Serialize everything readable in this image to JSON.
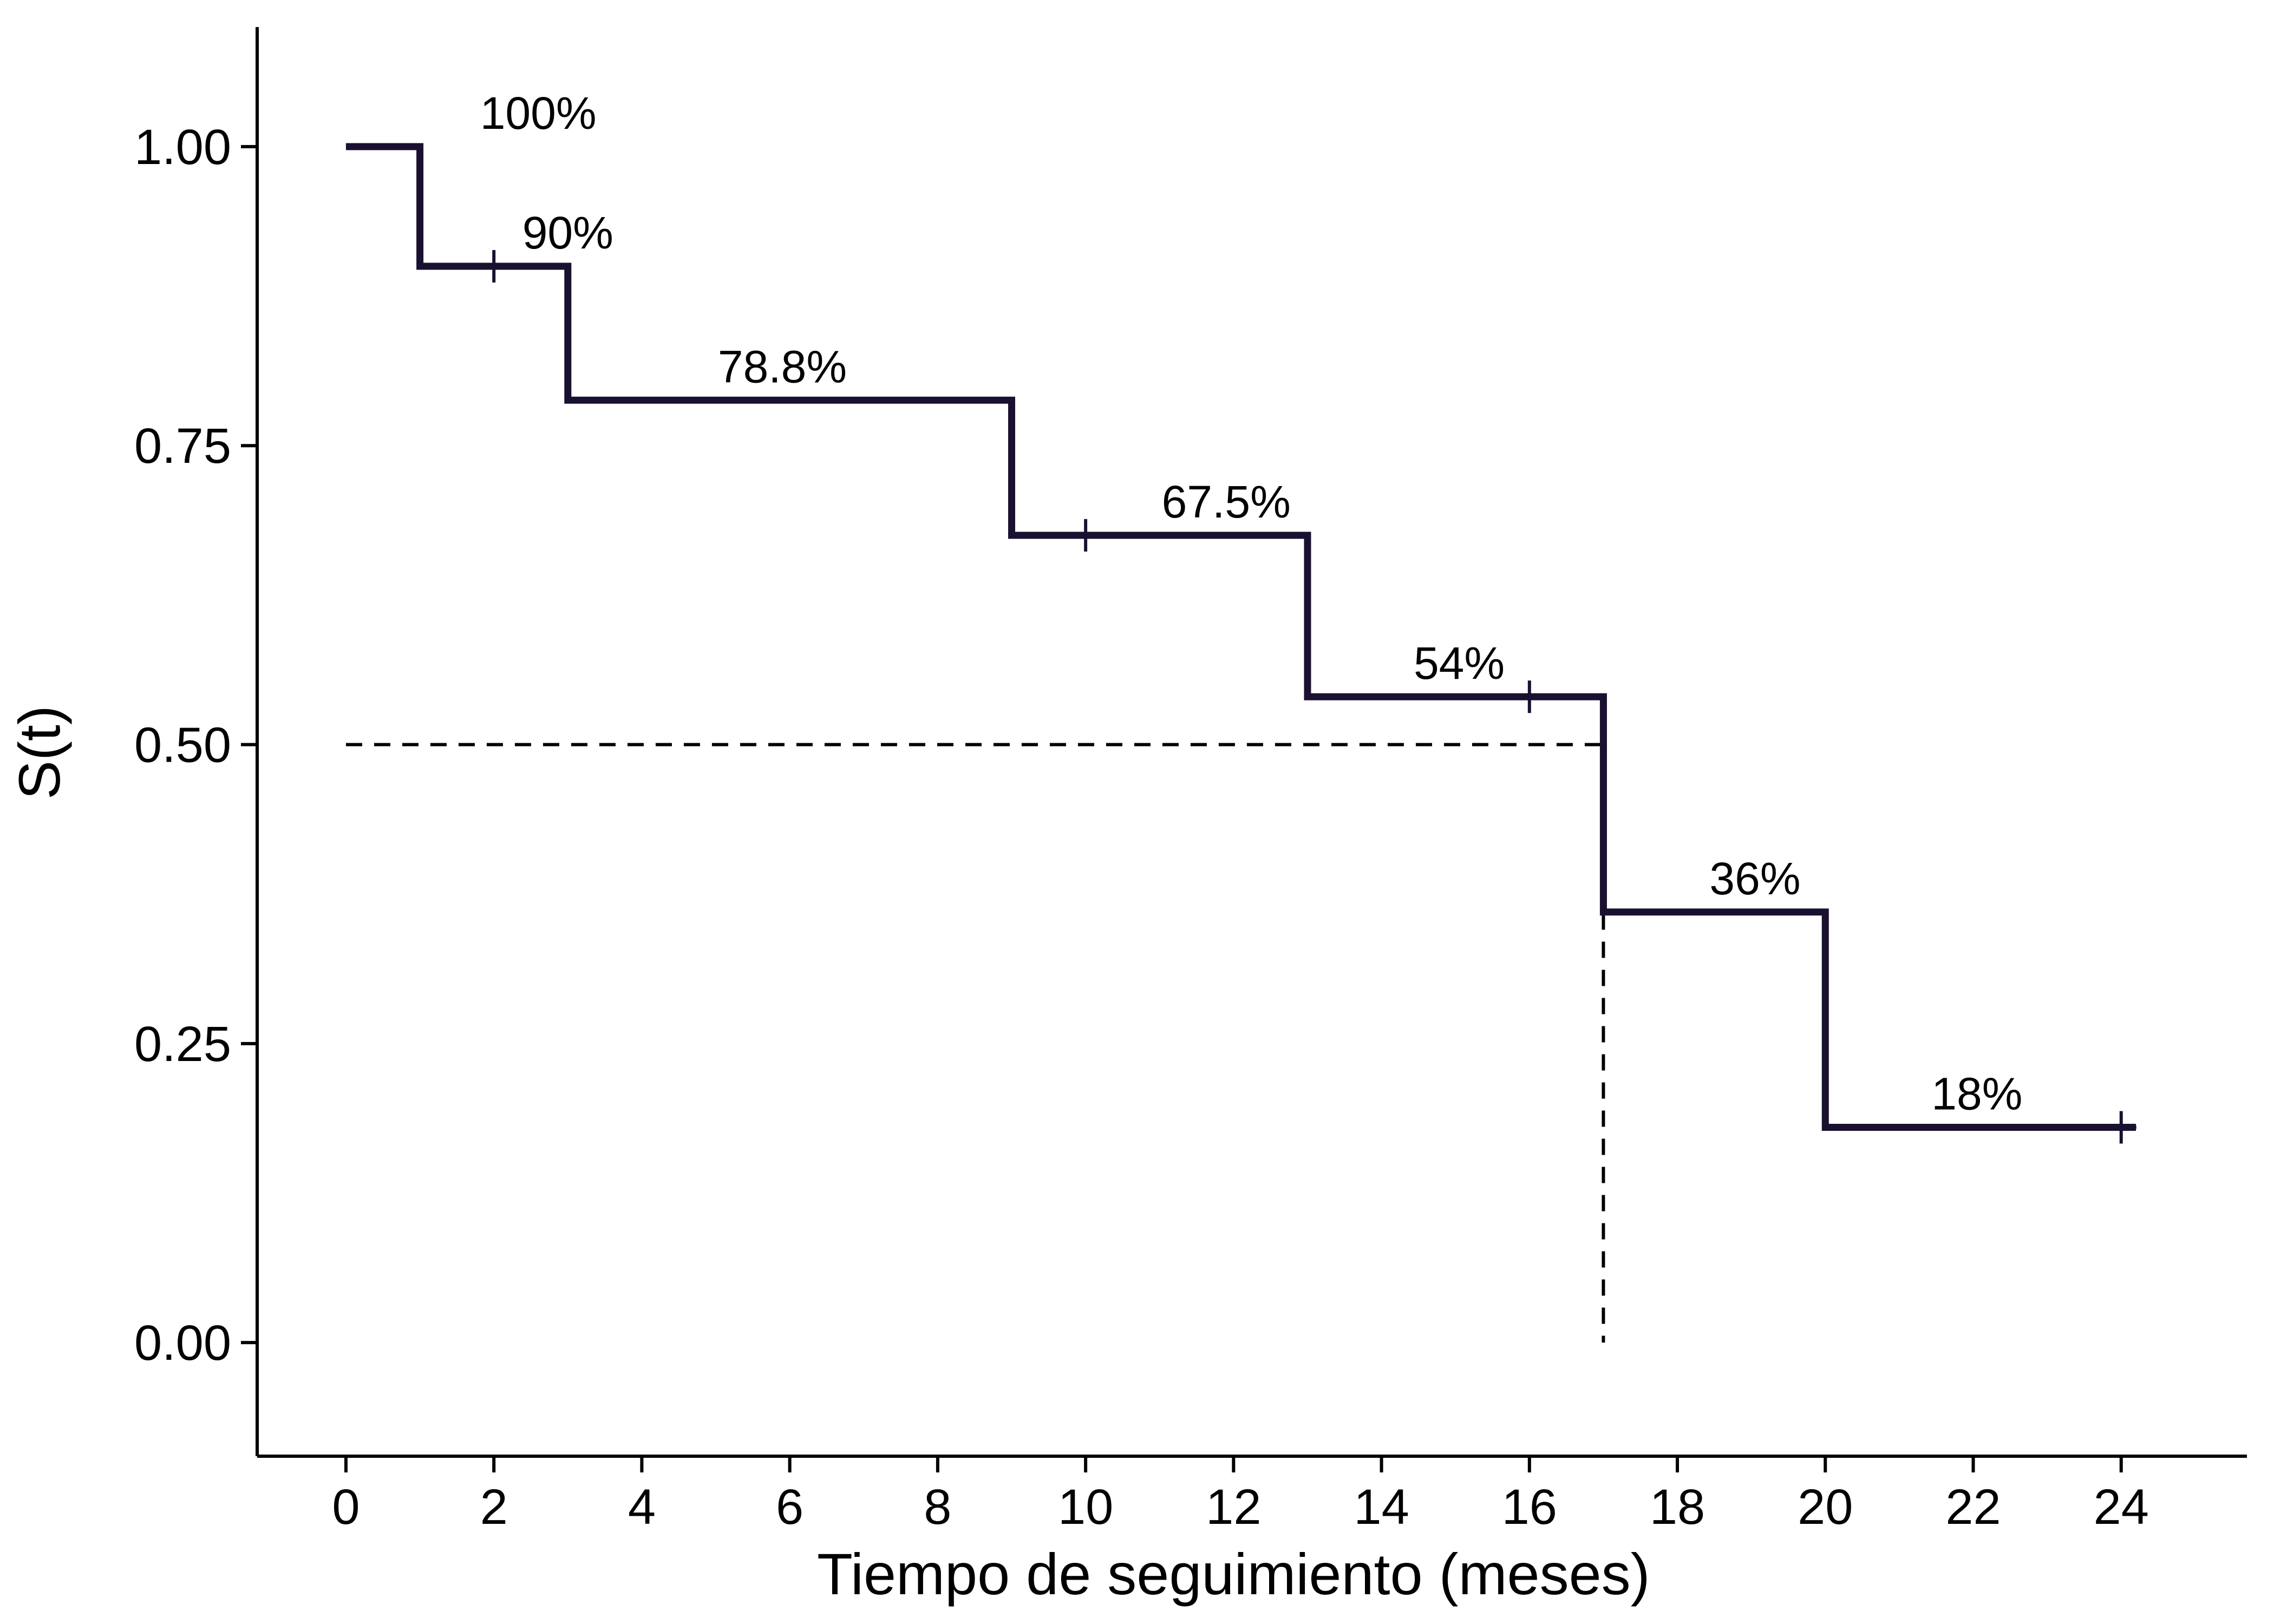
{
  "chart_data": {
    "type": "line",
    "title": "",
    "xlabel": "Tiempo de seguimiento (meses)",
    "ylabel": "S(t)",
    "xlim": [
      -1.2,
      25.7
    ],
    "ylim": [
      -0.095,
      1.1
    ],
    "xticks": [
      0,
      2,
      4,
      6,
      8,
      10,
      12,
      14,
      16,
      18,
      20,
      22,
      24
    ],
    "xtick_labels": [
      "0",
      "2",
      "4",
      "6",
      "8",
      "10",
      "12",
      "14",
      "16",
      "18",
      "20",
      "22",
      "24"
    ],
    "yticks": [
      0,
      0.25,
      0.5,
      0.75,
      1
    ],
    "ytick_labels": [
      "0.00",
      "0.25",
      "0.50",
      "0.75",
      "1.00"
    ],
    "grid": false,
    "legend": "none",
    "line_color": "#1a1130",
    "series": [
      {
        "step": "post",
        "x": [
          0,
          1,
          3,
          9,
          13,
          17,
          20,
          24.2
        ],
        "y": [
          1.0,
          0.9,
          0.788,
          0.675,
          0.54,
          0.36,
          0.18,
          0.18
        ]
      }
    ],
    "censor_marks": [
      {
        "x": 2,
        "y": 0.9
      },
      {
        "x": 10,
        "y": 0.675
      },
      {
        "x": 16,
        "y": 0.54
      },
      {
        "x": 24,
        "y": 0.18
      }
    ],
    "step_labels": [
      {
        "x": 2.6,
        "y": 1.0,
        "text": "100%"
      },
      {
        "x": 3.0,
        "y": 0.9,
        "text": "90%"
      },
      {
        "x": 5.9,
        "y": 0.788,
        "text": "78.8%"
      },
      {
        "x": 11.9,
        "y": 0.675,
        "text": "67.5%"
      },
      {
        "x": 15.05,
        "y": 0.54,
        "text": "54%"
      },
      {
        "x": 19.05,
        "y": 0.36,
        "text": "36%"
      },
      {
        "x": 22.05,
        "y": 0.18,
        "text": "18%"
      }
    ],
    "median_reference": {
      "survival": 0.5,
      "time": 17
    }
  }
}
